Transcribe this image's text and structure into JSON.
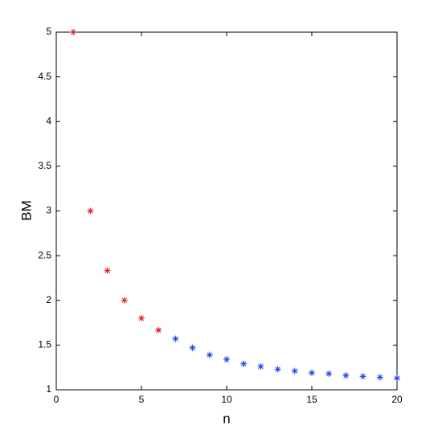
{
  "chart_data": {
    "type": "scatter",
    "x_label": "n",
    "y_label": "BM",
    "series": [
      {
        "color": "#e0141e",
        "x": [
          1,
          2,
          3,
          4,
          5,
          6
        ],
        "values": [
          5,
          3,
          2.333,
          2,
          1.8,
          1.667
        ]
      },
      {
        "color": "#1e3cf0",
        "x": [
          7,
          8,
          9,
          10,
          11,
          12,
          13,
          14,
          15,
          16,
          17,
          18,
          19,
          20
        ],
        "values": [
          1.57,
          1.47,
          1.39,
          1.34,
          1.29,
          1.26,
          1.23,
          1.21,
          1.19,
          1.18,
          1.16,
          1.15,
          1.14,
          1.13
        ]
      }
    ],
    "xlim": [
      0,
      20
    ],
    "xticks": [
      0,
      5,
      10,
      15,
      20
    ],
    "ylim": [
      1,
      5
    ],
    "yticks": [
      1,
      {
        "value": 1.5,
        "label": "1.5"
      },
      2,
      {
        "value": 2.5,
        "label": "2.5"
      },
      3,
      {
        "value": 3.5,
        "label": "3.5"
      },
      4,
      {
        "value": 4.5,
        "label": "4.5"
      },
      5
    ]
  }
}
